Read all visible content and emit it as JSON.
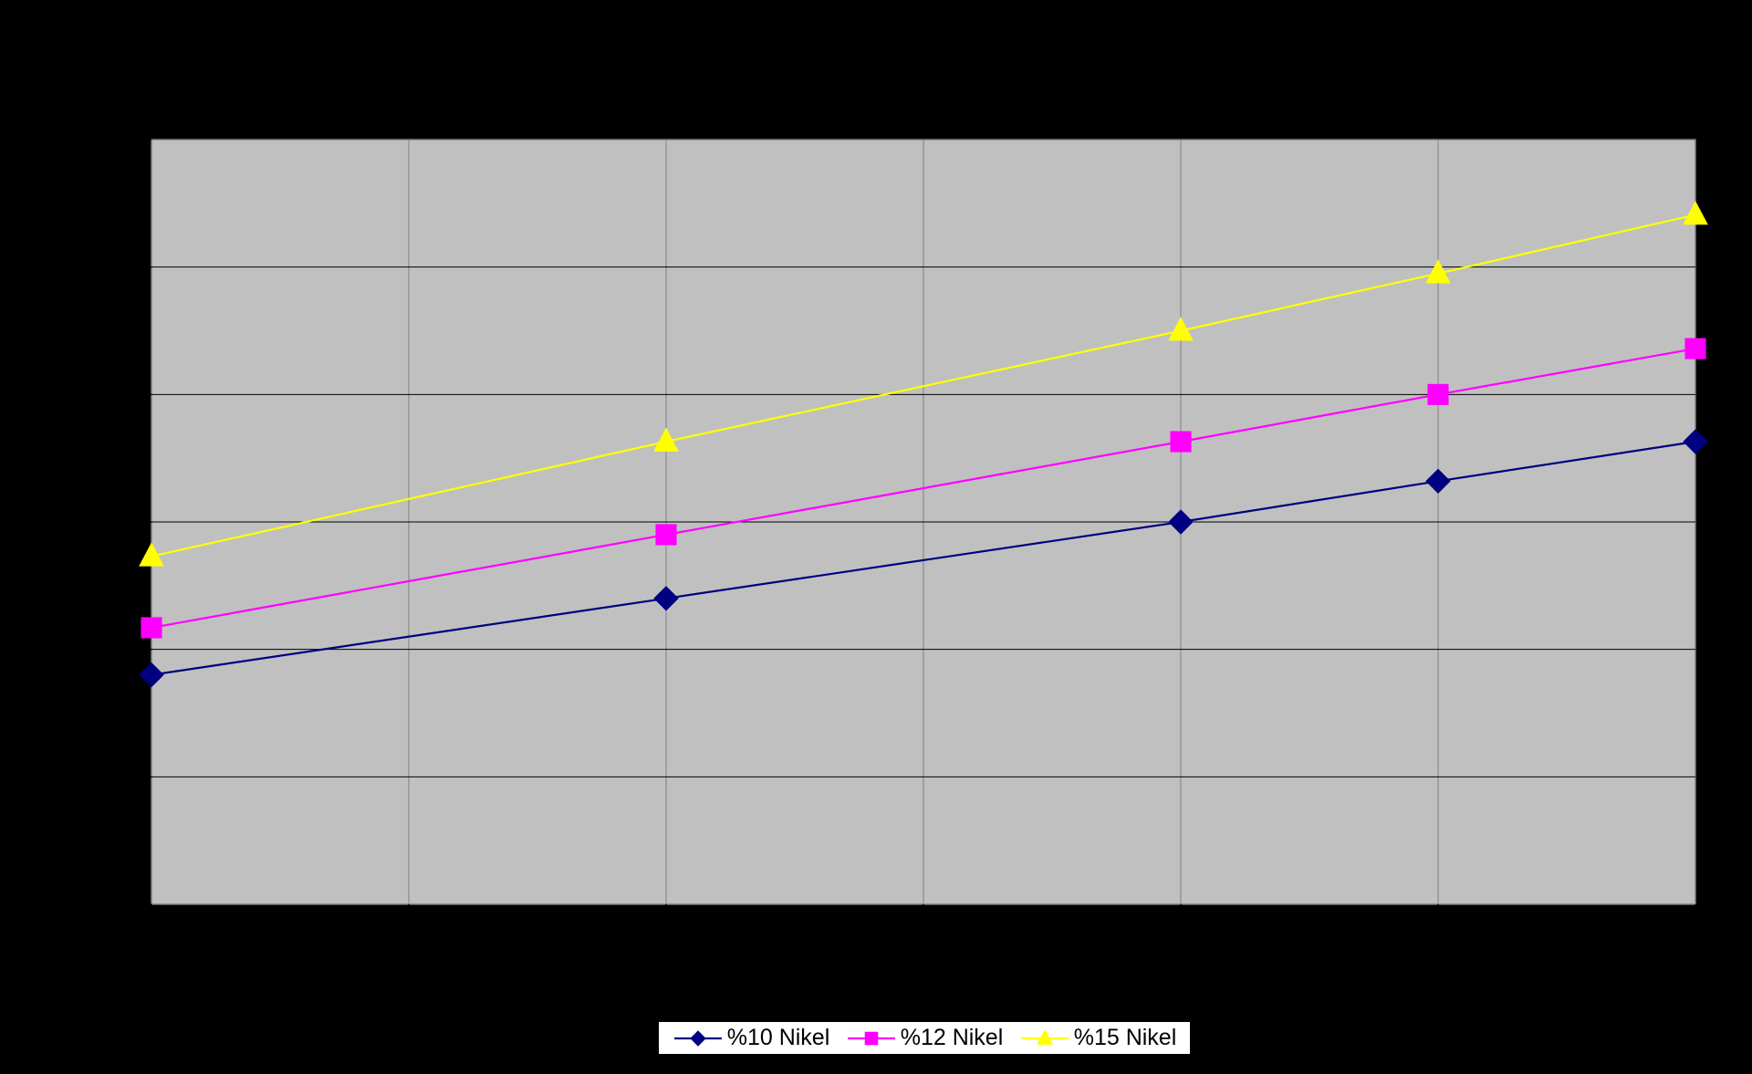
{
  "chart_data": {
    "type": "line",
    "title": "",
    "xlabel": "",
    "ylabel": "",
    "x": [
      0,
      1,
      2,
      3,
      4,
      5,
      6
    ],
    "ylim": [
      0,
      6
    ],
    "grid": true,
    "legend_position": "bottom",
    "plot_background": "#C0C0C0",
    "series": [
      {
        "name": "%10 Nikel",
        "color": "#000080",
        "marker": "diamond",
        "x": [
          0,
          2,
          4,
          5,
          6
        ],
        "y": [
          1.8,
          2.4,
          3.0,
          3.32,
          3.63
        ]
      },
      {
        "name": "%12 Nikel",
        "color": "#FF00FF",
        "marker": "square",
        "x": [
          0,
          2,
          4,
          5,
          6
        ],
        "y": [
          2.17,
          2.9,
          3.63,
          4.0,
          4.36
        ]
      },
      {
        "name": "%15 Nikel",
        "color": "#FFFF00",
        "marker": "triangle",
        "x": [
          0,
          2,
          4,
          5,
          6
        ],
        "y": [
          2.73,
          3.63,
          4.5,
          4.95,
          5.41
        ]
      }
    ]
  }
}
